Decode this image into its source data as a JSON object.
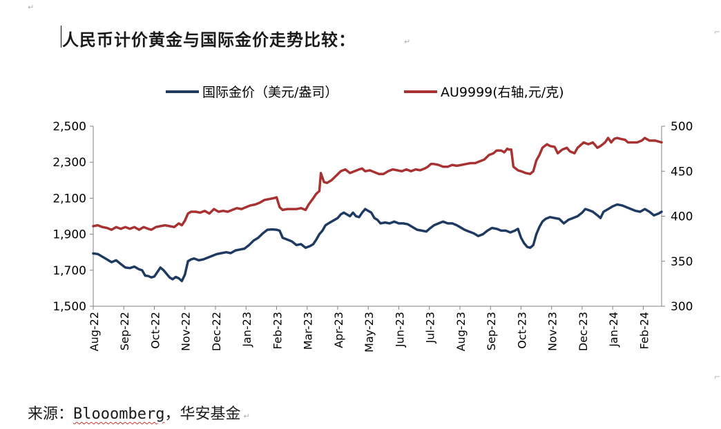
{
  "header": {
    "title": "人民币计价黄金与国际金价走势比较："
  },
  "footer": {
    "source_prefix": "来源：",
    "source_brand": "Blooomberg",
    "source_suffix": "，华安基金"
  },
  "colors": {
    "intl": "#1f3a60",
    "au": "#a83232",
    "axis": "#808080"
  },
  "chart_data": {
    "type": "line",
    "title": "",
    "xlabel": "",
    "ylabel_left": "",
    "ylabel_right": "",
    "ylim_left": [
      1500,
      2500
    ],
    "ylim_right": [
      300,
      500
    ],
    "yticks_left": [
      "2,500",
      "2,300",
      "2,100",
      "1,900",
      "1,700",
      "1,500"
    ],
    "yticks_right": [
      "500",
      "450",
      "400",
      "350",
      "300"
    ],
    "categories": [
      "Aug-22",
      "Sep-22",
      "Oct-22",
      "Nov-22",
      "Dec-22",
      "Jan-23",
      "Feb-23",
      "Mar-23",
      "Apr-23",
      "May-23",
      "Jun-23",
      "Jul-23",
      "Aug-23",
      "Sep-23",
      "Oct-23",
      "Nov-23",
      "Dec-23",
      "Jan-24",
      "Feb-24"
    ],
    "x_range": [
      0,
      18.6
    ],
    "legend_position": "top-center",
    "grid": false,
    "series": [
      {
        "name": "国际金价（美元/盎司）",
        "axis": "left",
        "color": "#1f3a60",
        "points": [
          [
            0.0,
            1793
          ],
          [
            0.15,
            1790
          ],
          [
            0.3,
            1775
          ],
          [
            0.45,
            1760
          ],
          [
            0.6,
            1745
          ],
          [
            0.75,
            1755
          ],
          [
            0.9,
            1735
          ],
          [
            1.05,
            1715
          ],
          [
            1.2,
            1712
          ],
          [
            1.35,
            1720
          ],
          [
            1.5,
            1705
          ],
          [
            1.6,
            1700
          ],
          [
            1.7,
            1670
          ],
          [
            1.8,
            1668
          ],
          [
            1.9,
            1660
          ],
          [
            2.0,
            1665
          ],
          [
            2.1,
            1690
          ],
          [
            2.2,
            1715
          ],
          [
            2.3,
            1700
          ],
          [
            2.4,
            1680
          ],
          [
            2.5,
            1660
          ],
          [
            2.6,
            1650
          ],
          [
            2.7,
            1663
          ],
          [
            2.8,
            1655
          ],
          [
            2.9,
            1640
          ],
          [
            3.0,
            1675
          ],
          [
            3.1,
            1750
          ],
          [
            3.2,
            1760
          ],
          [
            3.3,
            1765
          ],
          [
            3.45,
            1755
          ],
          [
            3.6,
            1760
          ],
          [
            3.75,
            1770
          ],
          [
            3.9,
            1780
          ],
          [
            4.05,
            1790
          ],
          [
            4.2,
            1795
          ],
          [
            4.35,
            1800
          ],
          [
            4.5,
            1795
          ],
          [
            4.65,
            1810
          ],
          [
            4.8,
            1815
          ],
          [
            4.95,
            1820
          ],
          [
            5.1,
            1840
          ],
          [
            5.25,
            1865
          ],
          [
            5.4,
            1880
          ],
          [
            5.55,
            1905
          ],
          [
            5.7,
            1925
          ],
          [
            5.85,
            1927
          ],
          [
            6.0,
            1925
          ],
          [
            6.1,
            1920
          ],
          [
            6.2,
            1880
          ],
          [
            6.35,
            1870
          ],
          [
            6.5,
            1860
          ],
          [
            6.65,
            1840
          ],
          [
            6.8,
            1845
          ],
          [
            6.95,
            1825
          ],
          [
            7.1,
            1835
          ],
          [
            7.2,
            1845
          ],
          [
            7.3,
            1870
          ],
          [
            7.4,
            1900
          ],
          [
            7.5,
            1920
          ],
          [
            7.6,
            1950
          ],
          [
            7.7,
            1960
          ],
          [
            7.8,
            1970
          ],
          [
            7.9,
            1980
          ],
          [
            8.0,
            1990
          ],
          [
            8.1,
            2010
          ],
          [
            8.2,
            2020
          ],
          [
            8.3,
            2010
          ],
          [
            8.4,
            2000
          ],
          [
            8.5,
            2020
          ],
          [
            8.6,
            2000
          ],
          [
            8.7,
            1995
          ],
          [
            8.8,
            2020
          ],
          [
            8.9,
            2040
          ],
          [
            9.0,
            2030
          ],
          [
            9.1,
            2020
          ],
          [
            9.2,
            1990
          ],
          [
            9.3,
            1980
          ],
          [
            9.4,
            1960
          ],
          [
            9.55,
            1965
          ],
          [
            9.7,
            1960
          ],
          [
            9.85,
            1970
          ],
          [
            10.0,
            1960
          ],
          [
            10.15,
            1960
          ],
          [
            10.3,
            1955
          ],
          [
            10.45,
            1940
          ],
          [
            10.6,
            1925
          ],
          [
            10.75,
            1920
          ],
          [
            10.9,
            1915
          ],
          [
            11.0,
            1930
          ],
          [
            11.15,
            1950
          ],
          [
            11.3,
            1960
          ],
          [
            11.45,
            1970
          ],
          [
            11.6,
            1960
          ],
          [
            11.75,
            1960
          ],
          [
            11.9,
            1950
          ],
          [
            12.0,
            1940
          ],
          [
            12.15,
            1925
          ],
          [
            12.3,
            1915
          ],
          [
            12.45,
            1905
          ],
          [
            12.6,
            1890
          ],
          [
            12.75,
            1900
          ],
          [
            12.9,
            1920
          ],
          [
            13.05,
            1935
          ],
          [
            13.2,
            1930
          ],
          [
            13.35,
            1920
          ],
          [
            13.5,
            1920
          ],
          [
            13.65,
            1910
          ],
          [
            13.8,
            1920
          ],
          [
            13.9,
            1930
          ],
          [
            14.0,
            1880
          ],
          [
            14.1,
            1850
          ],
          [
            14.2,
            1830
          ],
          [
            14.3,
            1825
          ],
          [
            14.4,
            1840
          ],
          [
            14.5,
            1900
          ],
          [
            14.6,
            1940
          ],
          [
            14.7,
            1970
          ],
          [
            14.8,
            1985
          ],
          [
            14.95,
            1995
          ],
          [
            15.1,
            1990
          ],
          [
            15.25,
            1985
          ],
          [
            15.4,
            1960
          ],
          [
            15.55,
            1980
          ],
          [
            15.7,
            1990
          ],
          [
            15.85,
            2000
          ],
          [
            16.0,
            2020
          ],
          [
            16.1,
            2040
          ],
          [
            16.2,
            2035
          ],
          [
            16.35,
            2025
          ],
          [
            16.5,
            2005
          ],
          [
            16.6,
            1990
          ],
          [
            16.7,
            2025
          ],
          [
            16.85,
            2040
          ],
          [
            17.0,
            2055
          ],
          [
            17.15,
            2065
          ],
          [
            17.3,
            2060
          ],
          [
            17.45,
            2050
          ],
          [
            17.6,
            2040
          ],
          [
            17.75,
            2030
          ],
          [
            17.9,
            2025
          ],
          [
            18.05,
            2040
          ],
          [
            18.2,
            2025
          ],
          [
            18.35,
            2005
          ],
          [
            18.5,
            2015
          ],
          [
            18.6,
            2025
          ]
        ]
      },
      {
        "name": "AU9999(右轴,元/克)",
        "axis": "right",
        "color": "#a83232",
        "points": [
          [
            0.0,
            389
          ],
          [
            0.15,
            390
          ],
          [
            0.3,
            388
          ],
          [
            0.45,
            387
          ],
          [
            0.6,
            385
          ],
          [
            0.75,
            388
          ],
          [
            0.9,
            386
          ],
          [
            1.05,
            388
          ],
          [
            1.2,
            386
          ],
          [
            1.35,
            388
          ],
          [
            1.5,
            385
          ],
          [
            1.65,
            388
          ],
          [
            1.8,
            386
          ],
          [
            1.9,
            385
          ],
          [
            2.05,
            388
          ],
          [
            2.2,
            389
          ],
          [
            2.35,
            390
          ],
          [
            2.5,
            389
          ],
          [
            2.65,
            388
          ],
          [
            2.8,
            392
          ],
          [
            2.9,
            390
          ],
          [
            3.0,
            395
          ],
          [
            3.1,
            403
          ],
          [
            3.2,
            405
          ],
          [
            3.35,
            405
          ],
          [
            3.5,
            404
          ],
          [
            3.65,
            406
          ],
          [
            3.8,
            403
          ],
          [
            3.95,
            408
          ],
          [
            4.1,
            405
          ],
          [
            4.25,
            406
          ],
          [
            4.4,
            405
          ],
          [
            4.55,
            407
          ],
          [
            4.7,
            409
          ],
          [
            4.85,
            408
          ],
          [
            5.0,
            410
          ],
          [
            5.15,
            412
          ],
          [
            5.3,
            413
          ],
          [
            5.45,
            415
          ],
          [
            5.6,
            418
          ],
          [
            5.75,
            419
          ],
          [
            5.9,
            420
          ],
          [
            6.0,
            421
          ],
          [
            6.1,
            410
          ],
          [
            6.2,
            407
          ],
          [
            6.35,
            408
          ],
          [
            6.5,
            408
          ],
          [
            6.65,
            408
          ],
          [
            6.8,
            409
          ],
          [
            6.95,
            407
          ],
          [
            7.05,
            413
          ],
          [
            7.2,
            420
          ],
          [
            7.3,
            425
          ],
          [
            7.4,
            428
          ],
          [
            7.45,
            448
          ],
          [
            7.55,
            438
          ],
          [
            7.65,
            437
          ],
          [
            7.8,
            440
          ],
          [
            7.95,
            445
          ],
          [
            8.1,
            450
          ],
          [
            8.25,
            452
          ],
          [
            8.4,
            448
          ],
          [
            8.55,
            450
          ],
          [
            8.7,
            452
          ],
          [
            8.8,
            453
          ],
          [
            8.9,
            450
          ],
          [
            9.05,
            451
          ],
          [
            9.2,
            449
          ],
          [
            9.35,
            447
          ],
          [
            9.5,
            447
          ],
          [
            9.65,
            450
          ],
          [
            9.8,
            452
          ],
          [
            9.95,
            451
          ],
          [
            10.1,
            450
          ],
          [
            10.25,
            452
          ],
          [
            10.4,
            450
          ],
          [
            10.55,
            452
          ],
          [
            10.7,
            451
          ],
          [
            10.85,
            453
          ],
          [
            10.95,
            455
          ],
          [
            11.05,
            458
          ],
          [
            11.15,
            458
          ],
          [
            11.3,
            457
          ],
          [
            11.45,
            455
          ],
          [
            11.6,
            455
          ],
          [
            11.75,
            457
          ],
          [
            11.9,
            456
          ],
          [
            12.05,
            457
          ],
          [
            12.2,
            458
          ],
          [
            12.35,
            459
          ],
          [
            12.5,
            459
          ],
          [
            12.65,
            461
          ],
          [
            12.8,
            463
          ],
          [
            12.95,
            468
          ],
          [
            13.1,
            470
          ],
          [
            13.2,
            473
          ],
          [
            13.35,
            473
          ],
          [
            13.45,
            471
          ],
          [
            13.55,
            475
          ],
          [
            13.6,
            474
          ],
          [
            13.68,
            474
          ],
          [
            13.75,
            455
          ],
          [
            13.9,
            451
          ],
          [
            14.0,
            450
          ],
          [
            14.15,
            448
          ],
          [
            14.3,
            447
          ],
          [
            14.4,
            450
          ],
          [
            14.5,
            462
          ],
          [
            14.6,
            468
          ],
          [
            14.7,
            476
          ],
          [
            14.85,
            480
          ],
          [
            14.95,
            478
          ],
          [
            15.1,
            477
          ],
          [
            15.2,
            470
          ],
          [
            15.35,
            474
          ],
          [
            15.5,
            476
          ],
          [
            15.6,
            472
          ],
          [
            15.75,
            470
          ],
          [
            15.85,
            476
          ],
          [
            15.95,
            479
          ],
          [
            16.05,
            482
          ],
          [
            16.2,
            480
          ],
          [
            16.35,
            482
          ],
          [
            16.5,
            476
          ],
          [
            16.6,
            478
          ],
          [
            16.75,
            482
          ],
          [
            16.85,
            487
          ],
          [
            16.95,
            482
          ],
          [
            17.05,
            486
          ],
          [
            17.15,
            487
          ],
          [
            17.25,
            486
          ],
          [
            17.4,
            485
          ],
          [
            17.5,
            482
          ],
          [
            17.65,
            482
          ],
          [
            17.8,
            482
          ],
          [
            17.95,
            484
          ],
          [
            18.05,
            487
          ],
          [
            18.2,
            484
          ],
          [
            18.4,
            484
          ],
          [
            18.6,
            482
          ]
        ]
      }
    ]
  }
}
